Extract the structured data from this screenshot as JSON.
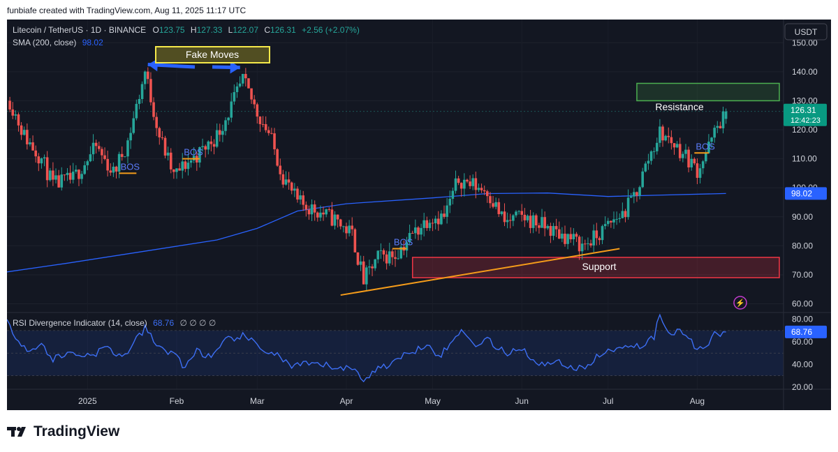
{
  "caption": "funbiafe created with TradingView.com, Aug 11, 2025 11:17 UTC",
  "header": {
    "symbol": "Litecoin / TetherUS · 1D · BINANCE",
    "o_label": "O",
    "o_value": "123.75",
    "h_label": "H",
    "h_value": "127.33",
    "l_label": "L",
    "l_value": "122.07",
    "c_label": "C",
    "c_value": "126.31",
    "change": "+2.56 (+2.07%)",
    "sma_label": "SMA (200, close)",
    "sma_value": "98.02",
    "currency_button": "USDT"
  },
  "rsi_header": {
    "label": "RSI Divergence Indicator (14, close)",
    "value": "68.76",
    "extras": "∅ ∅ ∅ ∅"
  },
  "annotations": {
    "fake_moves": "Fake Moves",
    "resistance": "Resistance",
    "support": "Support",
    "bos": "BOS"
  },
  "badges": {
    "price": "126.31",
    "countdown": "12:42:23",
    "sma": "98.02",
    "rsi": "68.76"
  },
  "colors": {
    "background": "#131722",
    "up": "#26a69a",
    "down": "#ef5350",
    "sma": "#2962ff",
    "rsi": "#3d6ff5",
    "resistance": "#4caf50",
    "support": "#f23645",
    "trendline": "#f59c1a",
    "fake_moves_box": "#f5e94a",
    "arrows": "#2962ff",
    "bos": "#5b7cfa"
  },
  "footer": {
    "brand": "TradingView"
  },
  "chart_data": [
    {
      "type": "candlestick",
      "title": "Litecoin / TetherUS · 1D · BINANCE",
      "ylabel": "USDT",
      "y_ticks": [
        60,
        70,
        80,
        90,
        100,
        110,
        120,
        130,
        140,
        150
      ],
      "y_tick_labels": [
        "60.00",
        "70.00",
        "80.00",
        "90.00",
        "100.00",
        "110.00",
        "120.00",
        "130.00",
        "140.00",
        "150.00"
      ],
      "ylim": [
        57,
        158
      ],
      "x_ticks": [
        "2025",
        "Feb",
        "Mar",
        "Apr",
        "May",
        "Jun",
        "Jul",
        "Aug"
      ],
      "x_range": [
        "2024-12-04",
        "2025-08-31"
      ],
      "close_path": [
        [
          "2024-12-05",
          130
        ],
        [
          "2024-12-10",
          118
        ],
        [
          "2024-12-16",
          110
        ],
        [
          "2024-12-20",
          101
        ],
        [
          "2024-12-27",
          103
        ],
        [
          "2025-01-04",
          114
        ],
        [
          "2025-01-10",
          105
        ],
        [
          "2025-01-15",
          116
        ],
        [
          "2025-01-21",
          140
        ],
        [
          "2025-01-26",
          118
        ],
        [
          "2025-01-31",
          104
        ],
        [
          "2025-02-04",
          108
        ],
        [
          "2025-02-09",
          112
        ],
        [
          "2025-02-15",
          118
        ],
        [
          "2025-02-20",
          128
        ],
        [
          "2025-02-24",
          137
        ],
        [
          "2025-03-01",
          126
        ],
        [
          "2025-03-05",
          119
        ],
        [
          "2025-03-10",
          104
        ],
        [
          "2025-03-15",
          95
        ],
        [
          "2025-03-22",
          92
        ],
        [
          "2025-03-28",
          89
        ],
        [
          "2025-04-03",
          84
        ],
        [
          "2025-04-07",
          68
        ],
        [
          "2025-04-12",
          76
        ],
        [
          "2025-04-18",
          77
        ],
        [
          "2025-04-24",
          84
        ],
        [
          "2025-04-30",
          90
        ],
        [
          "2025-05-05",
          90
        ],
        [
          "2025-05-10",
          103
        ],
        [
          "2025-05-15",
          101
        ],
        [
          "2025-05-20",
          99
        ],
        [
          "2025-05-26",
          88
        ],
        [
          "2025-06-01",
          90
        ],
        [
          "2025-06-06",
          88
        ],
        [
          "2025-06-12",
          85
        ],
        [
          "2025-06-17",
          83
        ],
        [
          "2025-06-22",
          80
        ],
        [
          "2025-06-27",
          83
        ],
        [
          "2025-07-02",
          88
        ],
        [
          "2025-07-07",
          92
        ],
        [
          "2025-07-11",
          99
        ],
        [
          "2025-07-15",
          110
        ],
        [
          "2025-07-19",
          119
        ],
        [
          "2025-07-23",
          116
        ],
        [
          "2025-07-28",
          111
        ],
        [
          "2025-08-01",
          106
        ],
        [
          "2025-08-05",
          114
        ],
        [
          "2025-08-08",
          121
        ],
        [
          "2025-08-11",
          126.31
        ]
      ],
      "sma_path": [
        [
          "2024-12-04",
          71
        ],
        [
          "2024-12-25",
          74
        ],
        [
          "2025-01-20",
          78
        ],
        [
          "2025-02-15",
          82
        ],
        [
          "2025-03-01",
          86
        ],
        [
          "2025-03-15",
          92
        ],
        [
          "2025-04-01",
          94.5
        ],
        [
          "2025-05-01",
          96.5
        ],
        [
          "2025-05-20",
          98
        ],
        [
          "2025-06-10",
          98.2
        ],
        [
          "2025-07-01",
          97
        ],
        [
          "2025-07-20",
          97.5
        ],
        [
          "2025-08-11",
          98.02
        ]
      ],
      "resistance_zone": {
        "from": "2025-07-11",
        "to": "2025-08-31",
        "low": 130,
        "high": 136
      },
      "support_zone": {
        "from": "2025-04-24",
        "to": "2025-08-31",
        "low": 69,
        "high": 76
      },
      "trendline": {
        "from": [
          "2025-03-30",
          63
        ],
        "to": [
          "2025-07-05",
          79
        ]
      },
      "bos_marks": [
        {
          "date_from": "2025-01-12",
          "date_to": "2025-01-18",
          "price": 105
        },
        {
          "date_from": "2025-02-03",
          "date_to": "2025-02-09",
          "price": 110
        },
        {
          "date_from": "2025-04-17",
          "date_to": "2025-04-22",
          "price": 79
        },
        {
          "date_from": "2025-07-31",
          "date_to": "2025-08-05",
          "price": 112
        }
      ],
      "fake_moves": [
        {
          "date": "2025-01-21",
          "price": 142
        },
        {
          "date": "2025-02-24",
          "price": 141
        }
      ],
      "last": {
        "open": 123.75,
        "high": 127.33,
        "low": 122.07,
        "close": 126.31
      }
    },
    {
      "type": "line",
      "title": "RSI Divergence Indicator (14, close)",
      "y_ticks": [
        20,
        40,
        60,
        80
      ],
      "y_tick_labels": [
        "20.00",
        "40.00",
        "60.00",
        "80.00"
      ],
      "ylim": [
        18,
        86
      ],
      "band": [
        30,
        70
      ],
      "midline": 50,
      "series": [
        {
          "points": [
            [
              "2024-12-04",
              77
            ],
            [
              "2024-12-08",
              62
            ],
            [
              "2024-12-12",
              52
            ],
            [
              "2024-12-16",
              57
            ],
            [
              "2024-12-20",
              45
            ],
            [
              "2024-12-26",
              50
            ],
            [
              "2025-01-02",
              48
            ],
            [
              "2025-01-08",
              55
            ],
            [
              "2025-01-13",
              46
            ],
            [
              "2025-01-17",
              58
            ],
            [
              "2025-01-21",
              72
            ],
            [
              "2025-01-26",
              54
            ],
            [
              "2025-02-01",
              50
            ],
            [
              "2025-02-03",
              35
            ],
            [
              "2025-02-08",
              53
            ],
            [
              "2025-02-13",
              45
            ],
            [
              "2025-02-19",
              63
            ],
            [
              "2025-02-24",
              65
            ],
            [
              "2025-03-02",
              55
            ],
            [
              "2025-03-08",
              48
            ],
            [
              "2025-03-13",
              38
            ],
            [
              "2025-03-20",
              40
            ],
            [
              "2025-03-28",
              38
            ],
            [
              "2025-04-04",
              35
            ],
            [
              "2025-04-07",
              27
            ],
            [
              "2025-04-12",
              36
            ],
            [
              "2025-04-18",
              43
            ],
            [
              "2025-04-25",
              53
            ],
            [
              "2025-04-30",
              60
            ],
            [
              "2025-05-03",
              46
            ],
            [
              "2025-05-08",
              60
            ],
            [
              "2025-05-11",
              72
            ],
            [
              "2025-05-15",
              58
            ],
            [
              "2025-05-20",
              62
            ],
            [
              "2025-05-26",
              50
            ],
            [
              "2025-06-01",
              55
            ],
            [
              "2025-06-07",
              38
            ],
            [
              "2025-06-12",
              44
            ],
            [
              "2025-06-18",
              38
            ],
            [
              "2025-06-22",
              35
            ],
            [
              "2025-06-26",
              45
            ],
            [
              "2025-07-02",
              52
            ],
            [
              "2025-07-07",
              58
            ],
            [
              "2025-07-12",
              56
            ],
            [
              "2025-07-17",
              65
            ],
            [
              "2025-07-19",
              84
            ],
            [
              "2025-07-22",
              70
            ],
            [
              "2025-07-27",
              68
            ],
            [
              "2025-07-31",
              57
            ],
            [
              "2025-08-04",
              55
            ],
            [
              "2025-08-07",
              68
            ],
            [
              "2025-08-09",
              62
            ],
            [
              "2025-08-11",
              68.76
            ]
          ]
        }
      ],
      "last_value": 68.76
    }
  ]
}
